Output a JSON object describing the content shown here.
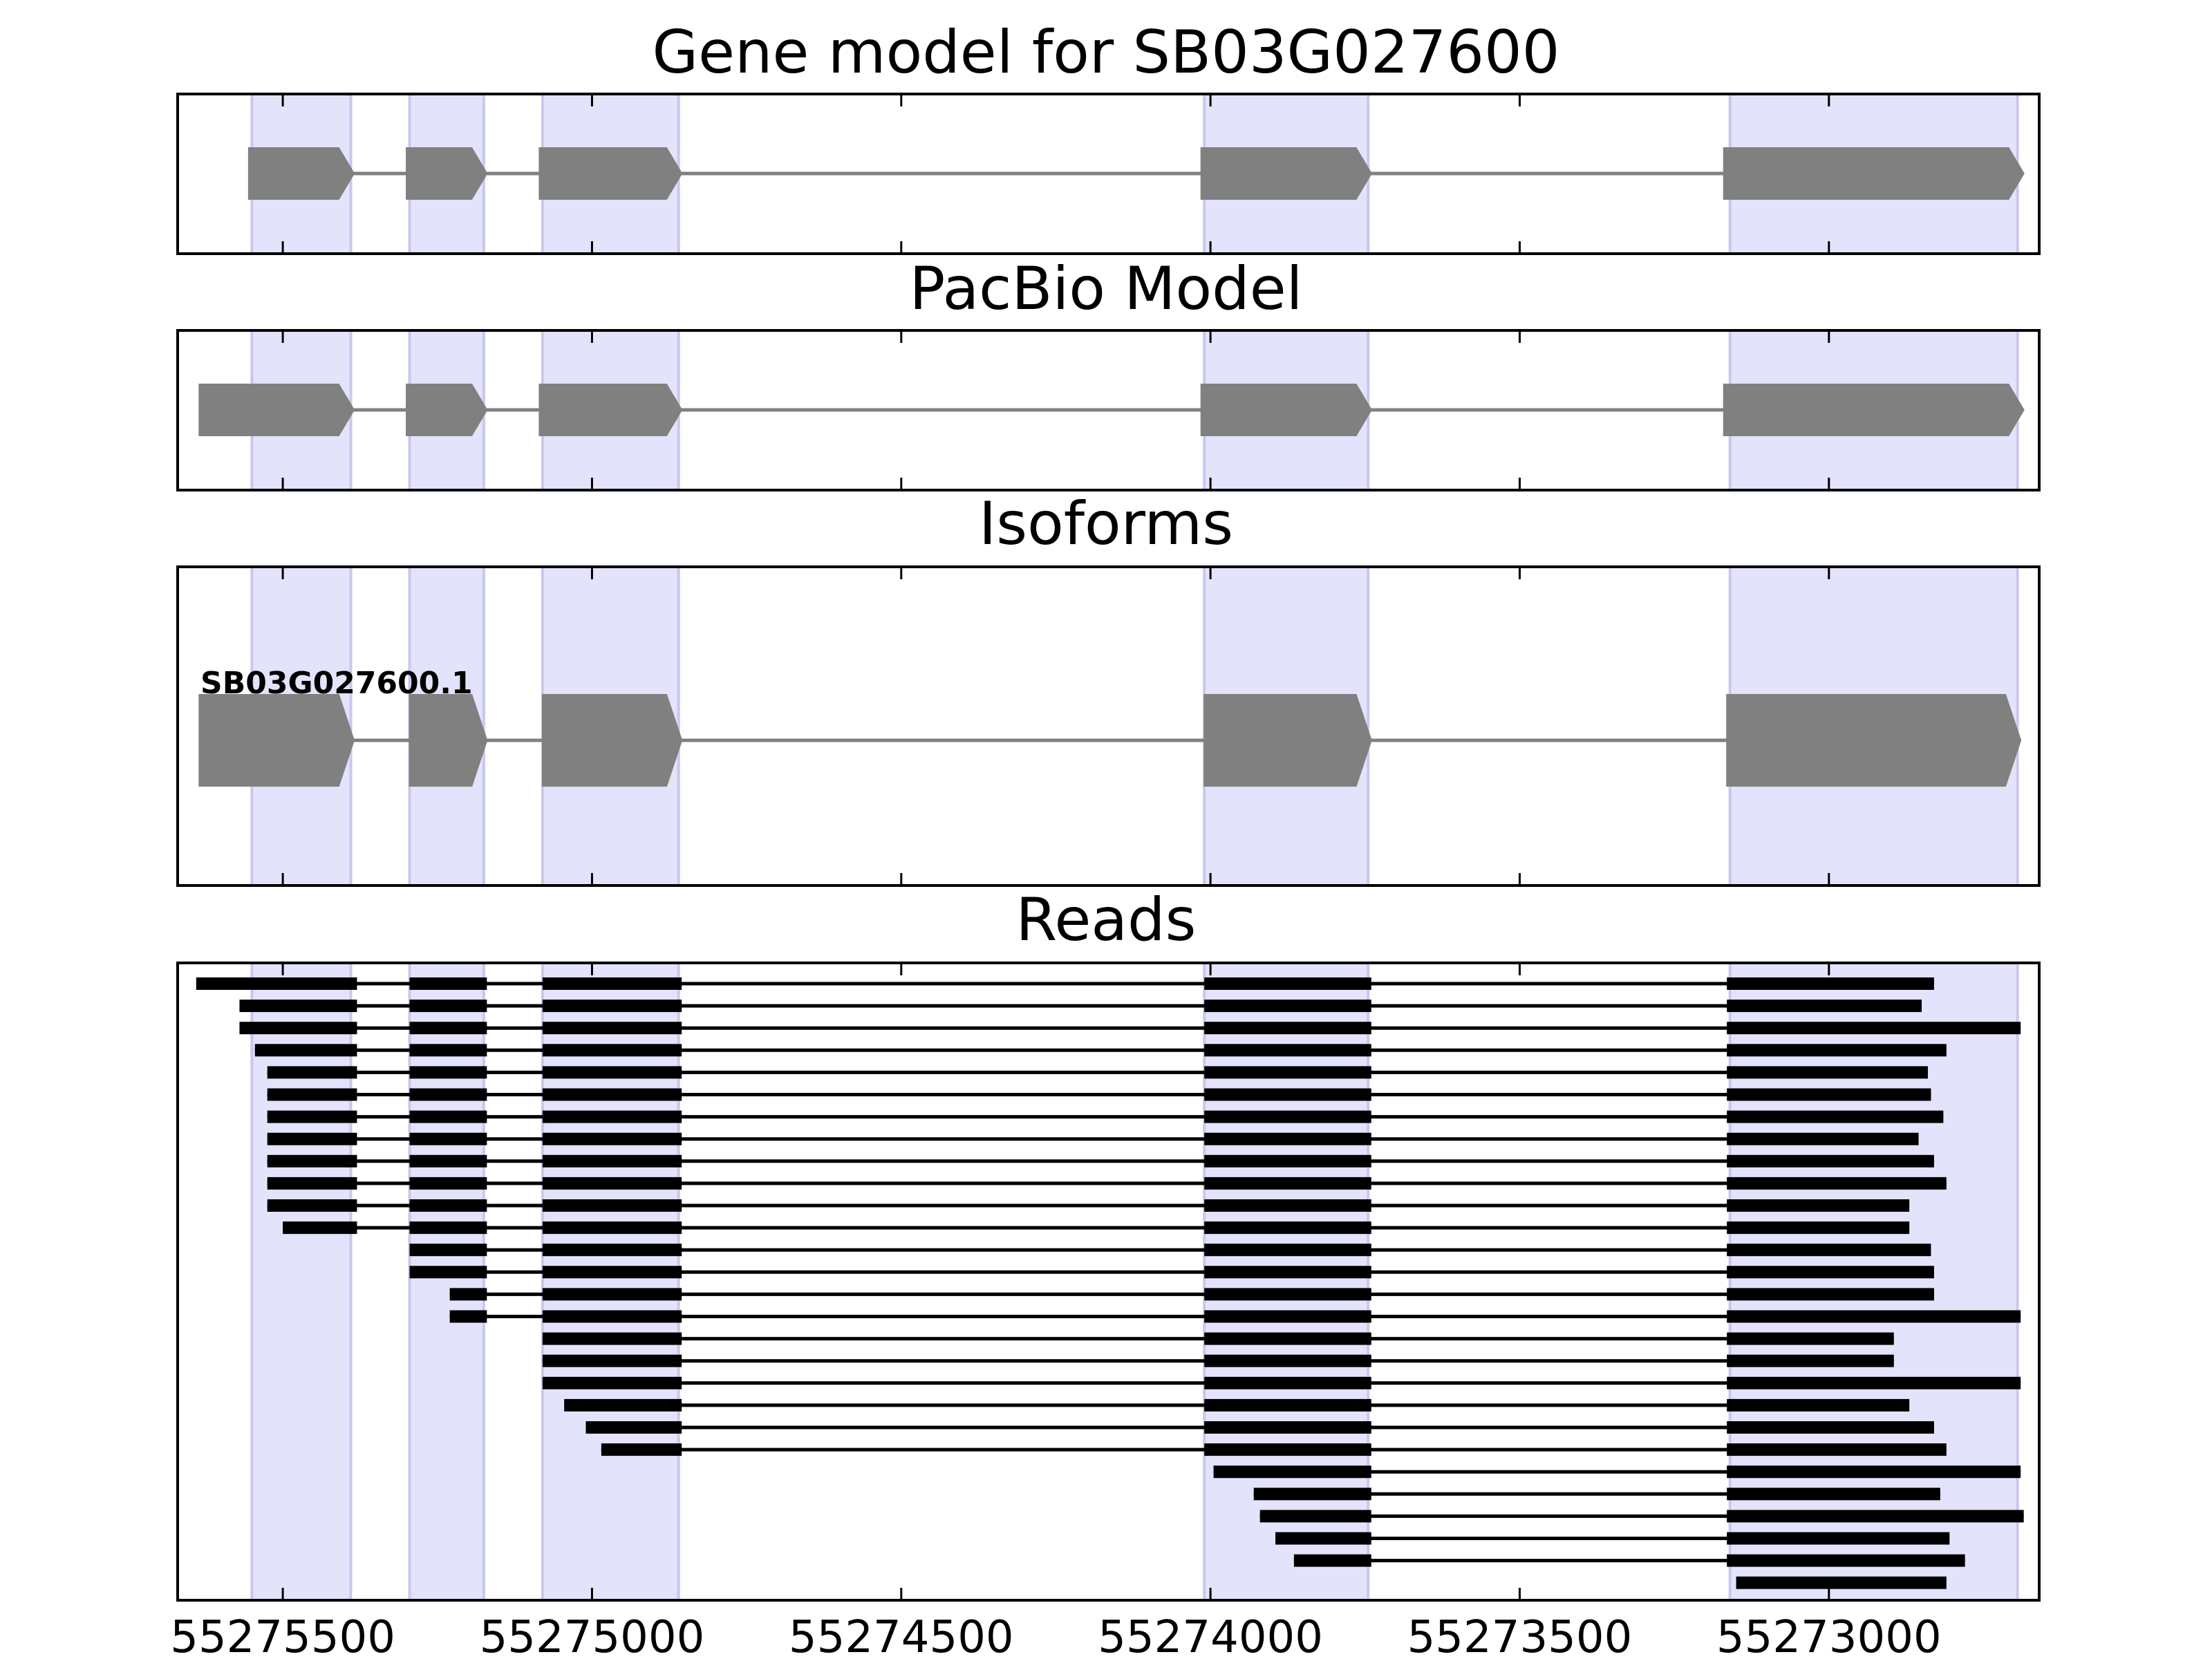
{
  "figure": {
    "panels": [
      {
        "id": "gene-model",
        "title": "Gene model for SB03G027600"
      },
      {
        "id": "pacbio-model",
        "title": "PacBio Model"
      },
      {
        "id": "isoforms",
        "title": "Isoforms",
        "isoform_label": "SB03G027600.1"
      },
      {
        "id": "reads",
        "title": "Reads"
      }
    ],
    "x_ticks": [
      55275500,
      55275000,
      55274500,
      55274000,
      55273500,
      55273000
    ],
    "x_tick_labels": [
      "55275500",
      "55275000",
      "55274500",
      "55274000",
      "55273500",
      "55273000"
    ],
    "x_axis_reversed": true,
    "highlight_color": "#e3e3fb",
    "feature_color": "#808080",
    "read_color": "#000000"
  },
  "chart_data": {
    "type": "gene-structure",
    "x_range": [
      55275670,
      55272660
    ],
    "highlighted_exon_regions": [
      [
        55275550,
        55275390
      ],
      [
        55275295,
        55275175
      ],
      [
        55275080,
        55274860
      ],
      [
        55274010,
        55273745
      ],
      [
        55273160,
        55272695
      ]
    ],
    "gene_model_exons": [
      [
        55275555,
        55275385
      ],
      [
        55275300,
        55275170
      ],
      [
        55275085,
        55274855
      ],
      [
        55274015,
        55273740
      ],
      [
        55273170,
        55272685
      ]
    ],
    "pacbio_model_exons": [
      [
        55275635,
        55275385
      ],
      [
        55275300,
        55275170
      ],
      [
        55275085,
        55274855
      ],
      [
        55274015,
        55273740
      ],
      [
        55273170,
        55272685
      ]
    ],
    "isoforms": [
      {
        "name": "SB03G027600.1",
        "exons": [
          [
            55275635,
            55275385
          ],
          [
            55275295,
            55275170
          ],
          [
            55275080,
            55274855
          ],
          [
            55274010,
            55273740
          ],
          [
            55273165,
            55272690
          ]
        ]
      }
    ],
    "reads": [
      [
        [
          55275640,
          55275380
        ],
        [
          55275295,
          55275170
        ],
        [
          55275080,
          55274855
        ],
        [
          55274010,
          55273740
        ],
        [
          55273165,
          55272830
        ]
      ],
      [
        [
          55275570,
          55275380
        ],
        [
          55275295,
          55275170
        ],
        [
          55275080,
          55274855
        ],
        [
          55274010,
          55273740
        ],
        [
          55273165,
          55272850
        ]
      ],
      [
        [
          55275570,
          55275380
        ],
        [
          55275295,
          55275170
        ],
        [
          55275080,
          55274855
        ],
        [
          55274010,
          55273740
        ],
        [
          55273165,
          55272690
        ]
      ],
      [
        [
          55275545,
          55275380
        ],
        [
          55275295,
          55275170
        ],
        [
          55275080,
          55274855
        ],
        [
          55274010,
          55273740
        ],
        [
          55273165,
          55272810
        ]
      ],
      [
        [
          55275525,
          55275380
        ],
        [
          55275295,
          55275170
        ],
        [
          55275080,
          55274855
        ],
        [
          55274010,
          55273740
        ],
        [
          55273165,
          55272840
        ]
      ],
      [
        [
          55275525,
          55275380
        ],
        [
          55275295,
          55275170
        ],
        [
          55275080,
          55274855
        ],
        [
          55274010,
          55273740
        ],
        [
          55273165,
          55272835
        ]
      ],
      [
        [
          55275525,
          55275380
        ],
        [
          55275295,
          55275170
        ],
        [
          55275080,
          55274855
        ],
        [
          55274010,
          55273740
        ],
        [
          55273165,
          55272815
        ]
      ],
      [
        [
          55275525,
          55275380
        ],
        [
          55275295,
          55275170
        ],
        [
          55275080,
          55274855
        ],
        [
          55274010,
          55273740
        ],
        [
          55273165,
          55272855
        ]
      ],
      [
        [
          55275525,
          55275380
        ],
        [
          55275295,
          55275170
        ],
        [
          55275080,
          55274855
        ],
        [
          55274010,
          55273740
        ],
        [
          55273165,
          55272830
        ]
      ],
      [
        [
          55275525,
          55275380
        ],
        [
          55275295,
          55275170
        ],
        [
          55275080,
          55274855
        ],
        [
          55274010,
          55273740
        ],
        [
          55273165,
          55272810
        ]
      ],
      [
        [
          55275525,
          55275380
        ],
        [
          55275295,
          55275170
        ],
        [
          55275080,
          55274855
        ],
        [
          55274010,
          55273740
        ],
        [
          55273165,
          55272870
        ]
      ],
      [
        [
          55275500,
          55275380
        ],
        [
          55275295,
          55275170
        ],
        [
          55275080,
          55274855
        ],
        [
          55274010,
          55273740
        ],
        [
          55273165,
          55272870
        ]
      ],
      [
        [
          55275295,
          55275170
        ],
        [
          55275080,
          55274855
        ],
        [
          55274010,
          55273740
        ],
        [
          55273165,
          55272835
        ]
      ],
      [
        [
          55275295,
          55275170
        ],
        [
          55275080,
          55274855
        ],
        [
          55274010,
          55273740
        ],
        [
          55273165,
          55272830
        ]
      ],
      [
        [
          55275230,
          55275170
        ],
        [
          55275080,
          55274855
        ],
        [
          55274010,
          55273740
        ],
        [
          55273165,
          55272830
        ]
      ],
      [
        [
          55275230,
          55275170
        ],
        [
          55275080,
          55274855
        ],
        [
          55274010,
          55273740
        ],
        [
          55273165,
          55272690
        ]
      ],
      [
        [
          55275080,
          55274855
        ],
        [
          55274010,
          55273740
        ],
        [
          55273165,
          55272895
        ]
      ],
      [
        [
          55275080,
          55274855
        ],
        [
          55274010,
          55273740
        ],
        [
          55273165,
          55272895
        ]
      ],
      [
        [
          55275080,
          55274855
        ],
        [
          55274010,
          55273740
        ],
        [
          55273165,
          55272690
        ]
      ],
      [
        [
          55275045,
          55274855
        ],
        [
          55274010,
          55273740
        ],
        [
          55273165,
          55272870
        ]
      ],
      [
        [
          55275010,
          55274855
        ],
        [
          55274010,
          55273740
        ],
        [
          55273165,
          55272830
        ]
      ],
      [
        [
          55274985,
          55274855
        ],
        [
          55274010,
          55273740
        ],
        [
          55273165,
          55272810
        ]
      ],
      [
        [
          55273995,
          55273740
        ],
        [
          55273165,
          55272690
        ]
      ],
      [
        [
          55273930,
          55273740
        ],
        [
          55273165,
          55272820
        ]
      ],
      [
        [
          55273920,
          55273740
        ],
        [
          55273165,
          55272685
        ]
      ],
      [
        [
          55273895,
          55273740
        ],
        [
          55273165,
          55272805
        ]
      ],
      [
        [
          55273865,
          55273740
        ],
        [
          55273165,
          55272780
        ]
      ],
      [
        [
          55273150,
          55272810
        ]
      ]
    ]
  }
}
